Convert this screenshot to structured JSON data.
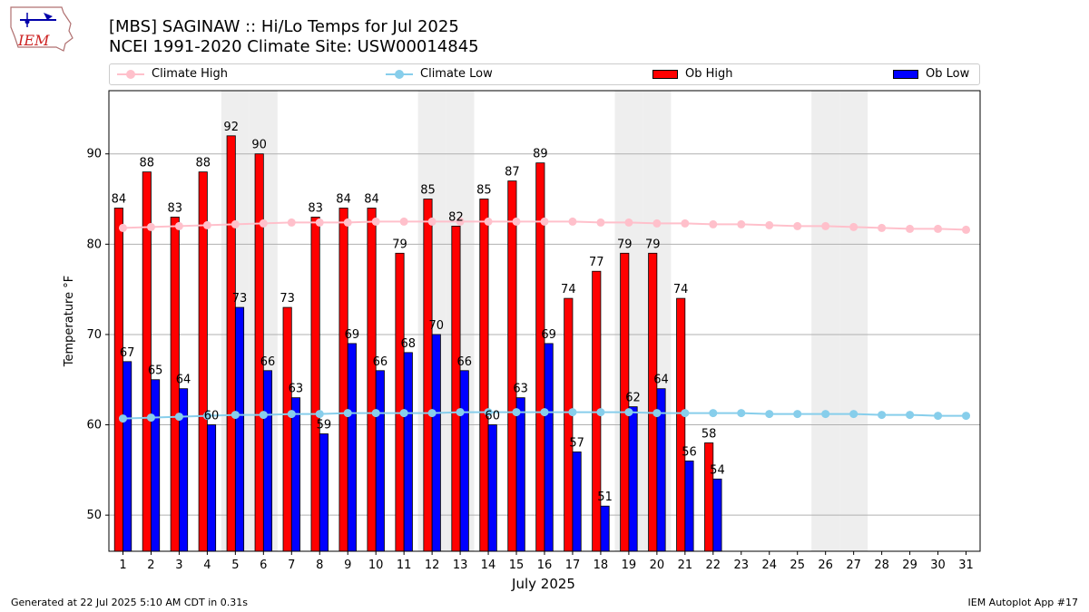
{
  "header": {
    "title_line1": "[MBS] SAGINAW :: Hi/Lo Temps for Jul 2025",
    "title_line2": "NCEI 1991-2020 Climate Site: USW00014845",
    "logo_text": "IEM"
  },
  "footer": {
    "left": "Generated at 22 Jul 2025 5:10 AM CDT in 0.31s",
    "right": "IEM Autoplot App #17"
  },
  "legend": {
    "climate_high": "Climate High",
    "climate_low": "Climate Low",
    "ob_high": "Ob High",
    "ob_low": "Ob Low"
  },
  "chart_data": {
    "type": "bar",
    "xlabel": "July 2025",
    "ylabel": "Temperature °F",
    "ylim": [
      46,
      97
    ],
    "yticks": [
      50,
      60,
      70,
      80,
      90
    ],
    "grid": "horizontal",
    "legend_position": "top",
    "weekend_shading_days": [
      5,
      6,
      12,
      13,
      19,
      20,
      26,
      27
    ],
    "days": [
      1,
      2,
      3,
      4,
      5,
      6,
      7,
      8,
      9,
      10,
      11,
      12,
      13,
      14,
      15,
      16,
      17,
      18,
      19,
      20,
      21,
      22,
      23,
      24,
      25,
      26,
      27,
      28,
      29,
      30,
      31
    ],
    "series": [
      {
        "name": "Ob High",
        "kind": "bar",
        "color": "#ff0000",
        "values": [
          84,
          88,
          83,
          88,
          92,
          90,
          73,
          83,
          84,
          84,
          79,
          85,
          82,
          85,
          87,
          89,
          74,
          77,
          79,
          79,
          74,
          58
        ]
      },
      {
        "name": "Ob Low",
        "kind": "bar",
        "color": "#0000ff",
        "values": [
          67,
          65,
          64,
          60,
          73,
          66,
          63,
          59,
          69,
          66,
          68,
          70,
          66,
          60,
          63,
          69,
          57,
          51,
          62,
          64,
          56,
          54
        ]
      },
      {
        "name": "Climate High",
        "kind": "line",
        "color": "#ffc0cb",
        "values": [
          81.8,
          81.9,
          82.0,
          82.1,
          82.2,
          82.3,
          82.4,
          82.4,
          82.4,
          82.5,
          82.5,
          82.5,
          82.5,
          82.5,
          82.5,
          82.5,
          82.5,
          82.4,
          82.4,
          82.3,
          82.3,
          82.2,
          82.2,
          82.1,
          82.0,
          82.0,
          81.9,
          81.8,
          81.7,
          81.7,
          81.6
        ]
      },
      {
        "name": "Climate Low",
        "kind": "line",
        "color": "#87ceeb",
        "values": [
          60.7,
          60.8,
          60.9,
          61.0,
          61.1,
          61.1,
          61.2,
          61.2,
          61.3,
          61.3,
          61.3,
          61.3,
          61.4,
          61.4,
          61.4,
          61.4,
          61.4,
          61.4,
          61.4,
          61.3,
          61.3,
          61.3,
          61.3,
          61.2,
          61.2,
          61.2,
          61.2,
          61.1,
          61.1,
          61.0,
          61.0
        ]
      }
    ]
  }
}
